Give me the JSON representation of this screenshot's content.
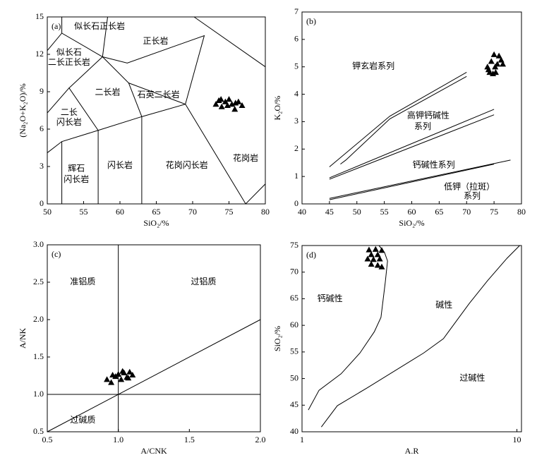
{
  "chart_data": [
    {
      "type": "scatter",
      "panel": "(a)",
      "xlabel": "SiO₂/%",
      "ylabel": "(Na₂O+K₂O)/%",
      "xlim": [
        50,
        80
      ],
      "ylim": [
        0,
        15
      ],
      "xticks": [
        50,
        55,
        60,
        65,
        70,
        75,
        80
      ],
      "yticks": [
        0,
        3,
        6,
        9,
        12,
        15
      ],
      "series": [
        {
          "color": "#000000",
          "x": [
            73.2,
            73.6,
            74.0,
            74.5,
            75.0,
            75.4,
            75.8,
            76.3,
            76.8,
            74.8,
            73.9,
            75.9
          ],
          "values": [
            8.0,
            8.3,
            7.8,
            8.2,
            8.4,
            8.0,
            7.6,
            8.2,
            7.9,
            7.9,
            8.4,
            8.1
          ]
        }
      ],
      "lines": [
        {
          "x": [
            52,
            52
          ],
          "y": [
            15,
            13.7
          ]
        },
        {
          "x": [
            50,
            52,
            57.6
          ],
          "y": [
            12.3,
            13.7,
            11.8
          ]
        },
        {
          "x": [
            57.6,
            61.2,
            63
          ],
          "y": [
            11.8,
            9.7,
            7
          ]
        },
        {
          "x": [
            53,
            57.6
          ],
          "y": [
            9.3,
            11.8
          ]
        },
        {
          "x": [
            50,
            53,
            57
          ],
          "y": [
            7.3,
            9.3,
            5.9
          ]
        },
        {
          "x": [
            50,
            52,
            57,
            63,
            69
          ],
          "y": [
            4.1,
            5,
            5.9,
            7,
            8
          ]
        },
        {
          "x": [
            52,
            52
          ],
          "y": [
            5,
            0
          ]
        },
        {
          "x": [
            57,
            57
          ],
          "y": [
            5.9,
            0
          ]
        },
        {
          "x": [
            63,
            63
          ],
          "y": [
            7,
            0
          ]
        },
        {
          "x": [
            57.6,
            61,
            71.6,
            69
          ],
          "y": [
            11.8,
            11.3,
            13.5,
            8
          ]
        },
        {
          "x": [
            61.2,
            69
          ],
          "y": [
            9.7,
            8
          ]
        },
        {
          "x": [
            69,
            77.3,
            80
          ],
          "y": [
            8,
            0,
            1.6
          ]
        },
        {
          "x": [
            70.2,
            80
          ],
          "y": [
            15,
            11
          ]
        },
        {
          "x": [
            58.3,
            57.6
          ],
          "y": [
            15,
            11.8
          ]
        }
      ],
      "annotations": [
        {
          "text": "似长石正长岩",
          "x": 57.2,
          "y": 14.2
        },
        {
          "text": "正长岩",
          "x": 64.9,
          "y": 13.0
        },
        {
          "text": "似长石",
          "x": 53.0,
          "y": 12.1
        },
        {
          "text": "二长正长岩",
          "x": 53.0,
          "y": 11.3
        },
        {
          "text": "二长岩",
          "x": 58.3,
          "y": 8.9
        },
        {
          "text": "石英二长岩",
          "x": 65.3,
          "y": 8.7
        },
        {
          "text": "二长",
          "x": 53.0,
          "y": 7.3
        },
        {
          "text": "闪长岩",
          "x": 53.0,
          "y": 6.5
        },
        {
          "text": "辉石",
          "x": 54.0,
          "y": 2.8
        },
        {
          "text": "闪长岩",
          "x": 54.0,
          "y": 1.9
        },
        {
          "text": "闪长岩",
          "x": 60.0,
          "y": 3.05
        },
        {
          "text": "花岗闪长岩",
          "x": 69.2,
          "y": 3.05
        },
        {
          "text": "花岗岩",
          "x": 77.3,
          "y": 3.6
        }
      ]
    },
    {
      "type": "scatter",
      "panel": "(b)",
      "xlabel": "SiO₂/%",
      "ylabel": "K₂O/%",
      "xlim": [
        40,
        80
      ],
      "ylim": [
        0,
        7
      ],
      "xticks": [
        40,
        45,
        50,
        55,
        60,
        65,
        70,
        75,
        80
      ],
      "yticks": [
        0,
        1,
        2,
        3,
        4,
        5,
        6,
        7
      ],
      "series": [
        {
          "color": "#000000",
          "x": [
            73.8,
            74.2,
            74.5,
            74.8,
            75.0,
            75.3,
            75.6,
            75.9,
            76.3,
            76.6,
            74.0,
            75.2
          ],
          "values": [
            5.0,
            4.8,
            5.2,
            4.75,
            5.45,
            4.8,
            5.1,
            5.4,
            5.25,
            5.1,
            4.9,
            5.0
          ]
        }
      ],
      "lines": [
        {
          "x": [
            45,
            56,
            70
          ],
          "y": [
            1.35,
            3.2,
            4.8
          ]
        },
        {
          "x": [
            47,
            48,
            56,
            70
          ],
          "y": [
            1.45,
            1.6,
            3.1,
            4.65
          ]
        },
        {
          "x": [
            45,
            75
          ],
          "y": [
            0.95,
            3.45
          ]
        },
        {
          "x": [
            45,
            75
          ],
          "y": [
            0.9,
            3.25
          ]
        },
        {
          "x": [
            45,
            78
          ],
          "y": [
            0.2,
            1.6
          ]
        },
        {
          "x": [
            45,
            75
          ],
          "y": [
            0.15,
            1.45
          ]
        }
      ],
      "annotations": [
        {
          "text": "钾玄岩系列",
          "x": 53,
          "y": 5.0
        },
        {
          "text": "高钾钙碱性",
          "x": 63,
          "y": 3.2
        },
        {
          "text": "系列",
          "x": 62,
          "y": 2.8
        },
        {
          "text": "钙碱性系列",
          "x": 64,
          "y": 1.4
        },
        {
          "text": "低钾（拉斑）",
          "x": 70.5,
          "y": 0.6
        },
        {
          "text": "系列",
          "x": 71,
          "y": 0.27
        }
      ]
    },
    {
      "type": "scatter",
      "panel": "(c)",
      "xlabel": "A/CNK",
      "ylabel": "A/NK",
      "xlim": [
        0.5,
        2.0
      ],
      "ylim": [
        0.5,
        3.0
      ],
      "xticks": [
        0.5,
        {
          "value": 1,
          "label": "1.0"
        },
        1.5,
        {
          "value": 2,
          "label": "2.0"
        }
      ],
      "yticks": [
        0.5,
        {
          "value": 1,
          "label": "1.0"
        },
        1.5,
        {
          "value": 2,
          "label": "2.0"
        },
        2.5,
        {
          "value": 3,
          "label": "3.0"
        }
      ],
      "series": [
        {
          "color": "#000000",
          "x": [
            0.92,
            0.95,
            0.98,
            1.0,
            1.02,
            1.04,
            1.06,
            1.08,
            1.1,
            0.96,
            1.03,
            1.07
          ],
          "values": [
            1.2,
            1.16,
            1.24,
            1.27,
            1.2,
            1.29,
            1.23,
            1.3,
            1.26,
            1.26,
            1.31,
            1.22
          ]
        }
      ],
      "lines": [
        {
          "x": [
            1,
            1
          ],
          "y": [
            0.5,
            3.0
          ]
        },
        {
          "x": [
            0.5,
            2.0
          ],
          "y": [
            1,
            1
          ]
        },
        {
          "x": [
            0.5,
            2.0
          ],
          "y": [
            0.5,
            2.0
          ]
        }
      ],
      "annotations": [
        {
          "text": "准铝质",
          "x": 0.75,
          "y": 2.5
        },
        {
          "text": "过铝质",
          "x": 1.6,
          "y": 2.5
        },
        {
          "text": "过碱质",
          "x": 0.75,
          "y": 0.65
        }
      ]
    },
    {
      "type": "scatter",
      "panel": "(d)",
      "xlabel": "A.R",
      "ylabel": "SiO₂/%",
      "xscale": "log",
      "xlim": [
        1,
        10.5
      ],
      "ylim": [
        40,
        75
      ],
      "xticks": [
        1,
        10
      ],
      "yticks": [
        40,
        45,
        50,
        55,
        60,
        65,
        70,
        75
      ],
      "series": [
        {
          "color": "#000000",
          "x": [
            2.05,
            2.2,
            2.35,
            2.1,
            2.25,
            2.02,
            2.15,
            2.3,
            2.1,
            2.25,
            2.35
          ],
          "values": [
            74.2,
            74.3,
            74.1,
            73.3,
            73.3,
            72.5,
            72.4,
            72.5,
            71.5,
            71.3,
            71.0
          ]
        }
      ],
      "lines": [
        {
          "x": [
            1.07,
            1.2,
            1.52,
            1.86,
            2.17,
            2.33,
            2.44,
            2.5,
            2.42,
            2.28
          ],
          "y": [
            44.1,
            47.8,
            50.9,
            54.8,
            58.8,
            61.5,
            68.1,
            72.1,
            73.7,
            75
          ]
        },
        {
          "x": [
            1.23,
            1.46,
            2.0,
            3.68,
            4.55,
            6.0,
            7.3,
            8.99,
            10.3
          ],
          "y": [
            40.9,
            44.9,
            48.2,
            54.8,
            57.5,
            64.1,
            68.4,
            72.6,
            75
          ]
        }
      ],
      "annotations": [
        {
          "text": "钙碱性",
          "x": 1.35,
          "y": 64.9
        },
        {
          "text": "碱性",
          "x": 4.58,
          "y": 63.7
        },
        {
          "text": "过碱性",
          "x": 6.2,
          "y": 50
        }
      ]
    }
  ]
}
